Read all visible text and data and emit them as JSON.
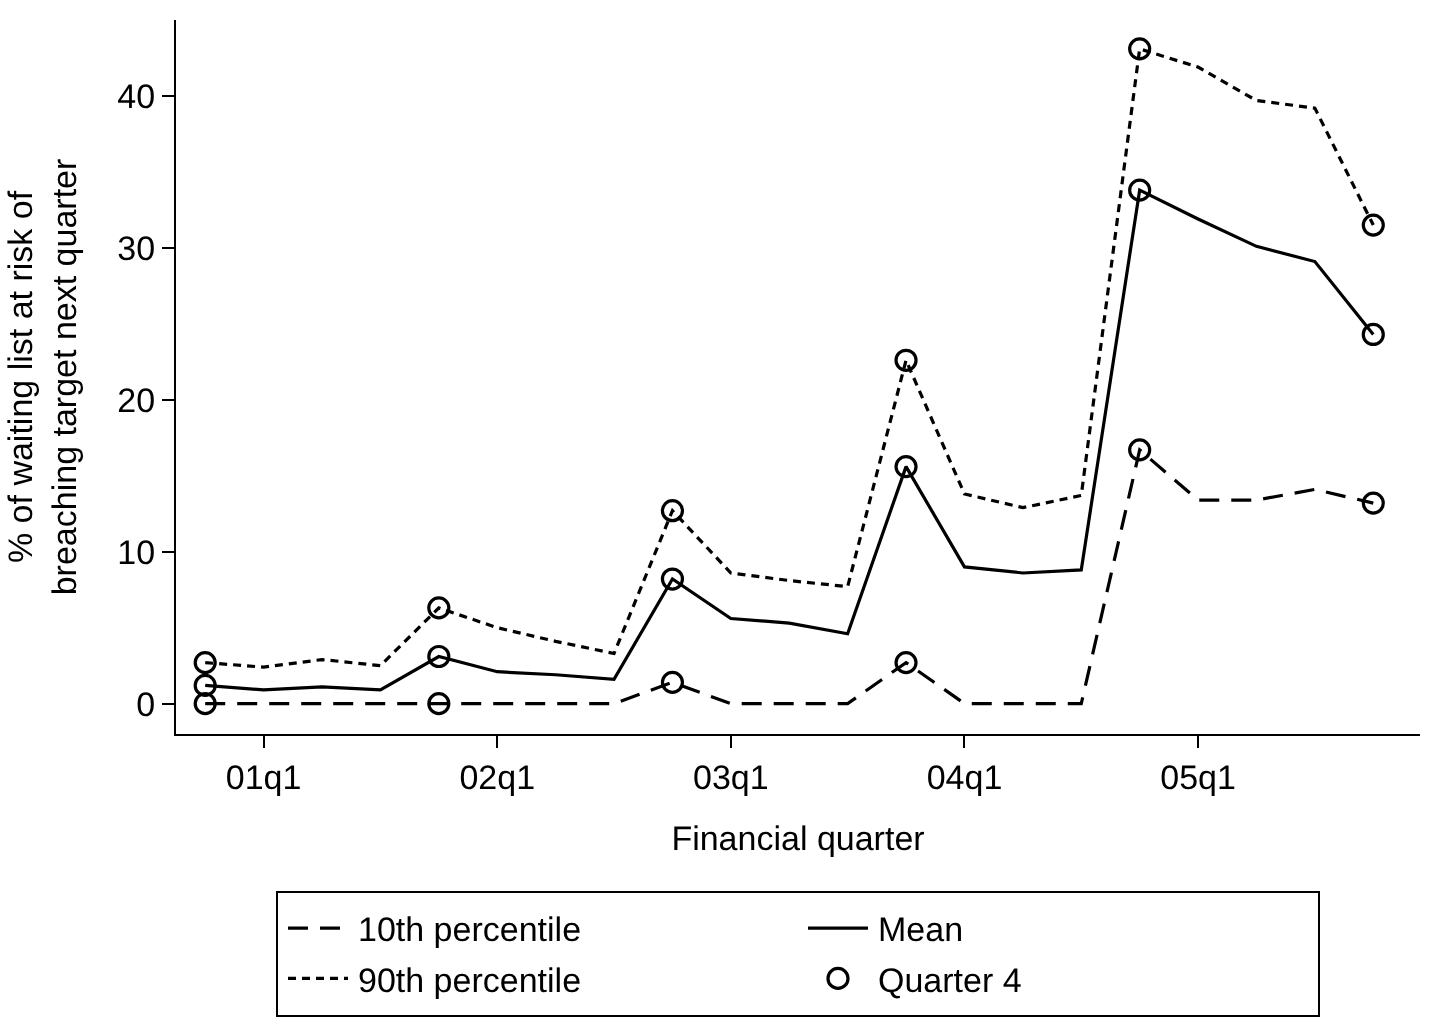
{
  "chart_data": {
    "type": "line",
    "xlabel": "Financial quarter",
    "ylabel": "% of waiting list at risk of breaching target next quarter",
    "categories": [
      null,
      "01q1",
      null,
      null,
      null,
      "02q1",
      null,
      null,
      null,
      "03q1",
      null,
      null,
      null,
      "04q1",
      null,
      null,
      null,
      "05q1",
      null,
      null,
      null
    ],
    "ylim": [
      -2,
      45
    ],
    "yticks": [
      0,
      10,
      20,
      30,
      40
    ],
    "legend": "bottom",
    "series": [
      {
        "name": "10th percentile",
        "color": "#000000",
        "line_style": "dashed",
        "marker": "none",
        "values": [
          0,
          0,
          0,
          0,
          0,
          0,
          0,
          0,
          1.4,
          0,
          0,
          0,
          2.7,
          0,
          0,
          0,
          16.7,
          13.4,
          13.4,
          14.1,
          13.2
        ]
      },
      {
        "name": "Mean",
        "color": "#000000",
        "line_style": "solid",
        "marker": "none",
        "values": [
          1.2,
          0.9,
          1.1,
          0.9,
          3.1,
          2.1,
          1.9,
          1.6,
          8.2,
          5.6,
          5.3,
          4.6,
          15.6,
          9.0,
          8.6,
          8.8,
          33.8,
          31.9,
          30.1,
          29.1,
          24.3
        ]
      },
      {
        "name": "90th percentile",
        "color": "#000000",
        "line_style": "dotted",
        "marker": "none",
        "values": [
          2.7,
          2.4,
          2.9,
          2.5,
          6.3,
          5.0,
          4.1,
          3.3,
          12.7,
          8.6,
          8.1,
          7.7,
          22.6,
          13.8,
          12.9,
          13.7,
          43.1,
          41.9,
          39.7,
          39.2,
          31.5
        ]
      },
      {
        "name": "Quarter 4",
        "type": "scatter",
        "color": "#000000",
        "marker": "circle",
        "values": [
          2.7,
          null,
          null,
          null,
          6.3,
          null,
          null,
          null,
          12.7,
          null,
          null,
          null,
          22.6,
          null,
          null,
          null,
          43.1,
          null,
          null,
          null,
          31.5
        ]
      },
      {
        "type": "scatter",
        "color": "#000000",
        "marker": "circle",
        "values": [
          1.2,
          null,
          null,
          null,
          3.1,
          null,
          null,
          null,
          8.2,
          null,
          null,
          null,
          15.6,
          null,
          null,
          null,
          33.8,
          null,
          null,
          null,
          24.3
        ]
      },
      {
        "type": "scatter",
        "color": "#000000",
        "marker": "circle",
        "values": [
          0,
          null,
          null,
          null,
          0,
          null,
          null,
          null,
          1.4,
          null,
          null,
          null,
          2.7,
          null,
          null,
          null,
          16.7,
          null,
          null,
          null,
          13.2
        ]
      }
    ]
  }
}
